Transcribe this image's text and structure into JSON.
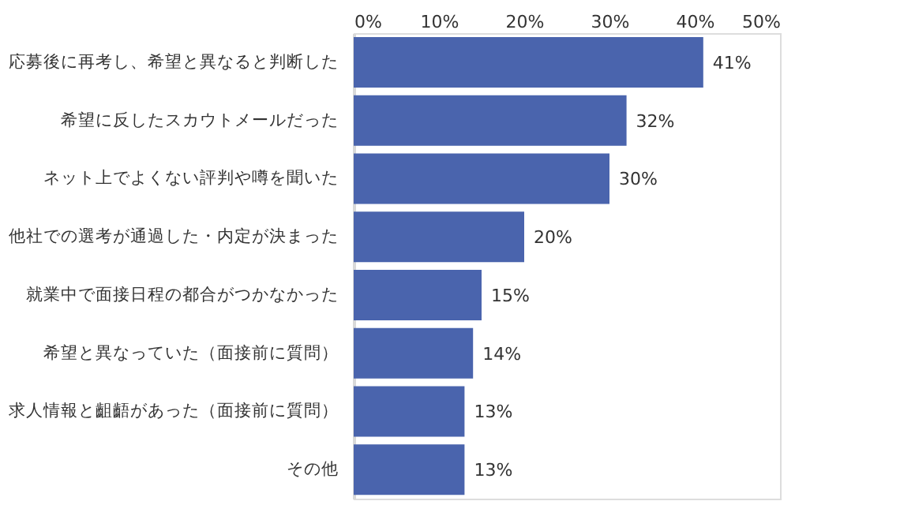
{
  "chart_data": {
    "type": "bar",
    "orientation": "horizontal",
    "categories": [
      "応募後に再考し、希望と異なると判断した",
      "希望に反したスカウトメールだった",
      "ネット上でよくない評判や噂を聞いた",
      "他社での選考が通過した・内定が決まった",
      "就業中で面接日程の都合がつかなかった",
      "希望と異なっていた（面接前に質問）",
      "求人情報と齟齬があった（面接前に質問）",
      "その他"
    ],
    "values": [
      41,
      32,
      30,
      20,
      15,
      14,
      13,
      13
    ],
    "value_labels": [
      "41%",
      "32%",
      "30%",
      "20%",
      "15%",
      "14%",
      "13%",
      "13%"
    ],
    "color": "#4a64ad",
    "xlim": [
      0,
      50
    ],
    "xticks": [
      {
        "value": 0,
        "label": "0%"
      },
      {
        "value": 10,
        "label": "10%"
      },
      {
        "value": 20,
        "label": "20%"
      },
      {
        "value": 30,
        "label": "30%"
      },
      {
        "value": 40,
        "label": "40%"
      },
      {
        "value": 50,
        "label": "50%"
      }
    ],
    "grid": false
  }
}
